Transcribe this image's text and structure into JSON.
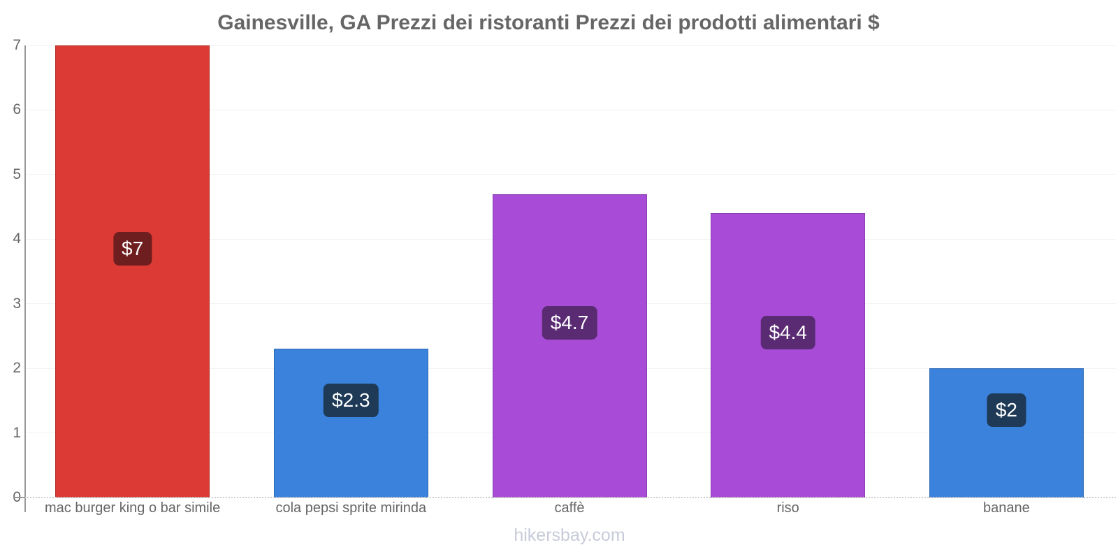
{
  "title": "Gainesville, GA Prezzi dei ristoranti Prezzi dei prodotti alimentari $",
  "footer": {
    "link_label": "hikersbay.com"
  },
  "colors": {
    "title_text": "#666666",
    "axis_text": "#666666",
    "axis_line": "#999999",
    "gridline": "#f2f2f2",
    "baseline": "#cccccc",
    "footer_text": "#c8cbd9",
    "red_bar": "#dc3a35",
    "blue_bar": "#3a82dc",
    "purple_bar": "#a84cd8",
    "red_label_bg": "#6e1e1e",
    "blue_label_bg": "#1e3a57",
    "purple_label_bg": "#5a2b73"
  },
  "chart_data": {
    "type": "bar",
    "title": "Gainesville, GA Prezzi dei ristoranti Prezzi dei prodotti alimentari $",
    "xlabel": "",
    "ylabel": "",
    "ylim": [
      0,
      7
    ],
    "yticks": [
      0,
      1,
      2,
      3,
      4,
      5,
      6,
      7
    ],
    "grid": true,
    "legend": false,
    "categories": [
      "mac burger king o bar simile",
      "cola pepsi sprite mirinda",
      "caffè",
      "riso",
      "banane"
    ],
    "values": [
      7,
      2.3,
      4.7,
      4.4,
      2
    ],
    "value_labels": [
      "$7",
      "$2.3",
      "$4.7",
      "$4.4",
      "$2"
    ],
    "bar_colors": [
      "#dc3a35",
      "#3a82dc",
      "#a84cd8",
      "#a84cd8",
      "#3a82dc"
    ],
    "value_label_bg_colors": [
      "#6e1e1e",
      "#1e3a57",
      "#5a2b73",
      "#5a2b73",
      "#1e3a57"
    ]
  }
}
